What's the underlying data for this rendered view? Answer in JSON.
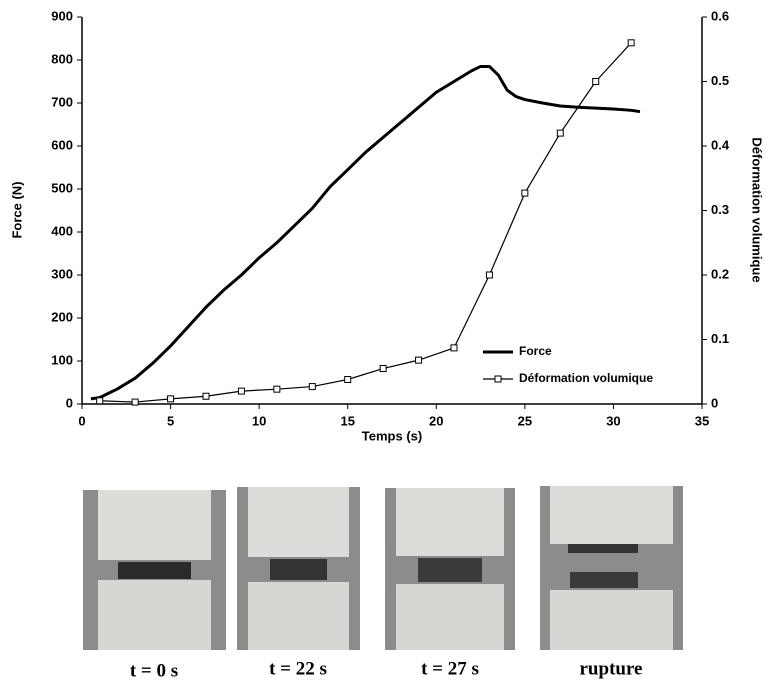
{
  "chart_data": {
    "type": "line",
    "xlabel": "Temps (s)",
    "ylabel": "Force (N)",
    "y2label": "Déformation volumique",
    "xlim": [
      0,
      35
    ],
    "xticks": [
      0,
      5,
      10,
      15,
      20,
      25,
      30,
      35
    ],
    "ylim": [
      0,
      900
    ],
    "yticks": [
      0,
      100,
      200,
      300,
      400,
      500,
      600,
      700,
      800,
      900
    ],
    "y2lim": [
      0,
      0.6
    ],
    "y2ticks": [
      0,
      0.1,
      0.2,
      0.3,
      0.4,
      0.5,
      0.6
    ],
    "legend": "lower right",
    "series": [
      {
        "name": "Force",
        "color": "#000000",
        "x": [
          0.5,
          1,
          1.5,
          2,
          3,
          4,
          5,
          6,
          7,
          8,
          9,
          10,
          11,
          12,
          13,
          14,
          15,
          16,
          17,
          18,
          19,
          20,
          21,
          22,
          22.5,
          23,
          23.5,
          24,
          24.5,
          25,
          26,
          27,
          28,
          29,
          30,
          31,
          31.5
        ],
        "values": [
          12,
          15,
          25,
          35,
          60,
          95,
          135,
          180,
          225,
          265,
          300,
          340,
          375,
          415,
          455,
          505,
          545,
          585,
          620,
          655,
          690,
          725,
          750,
          775,
          785,
          785,
          765,
          730,
          715,
          708,
          700,
          693,
          690,
          688,
          686,
          683,
          680
        ]
      },
      {
        "name": "Déformation volumique",
        "color": "#000000",
        "axis": "y2",
        "marker": "square",
        "x": [
          1,
          3,
          5,
          7,
          9,
          11,
          13,
          15,
          17,
          19,
          21,
          23,
          25,
          27,
          29,
          31
        ],
        "values": [
          0.005,
          0.003,
          0.008,
          0.012,
          0.02,
          0.023,
          0.027,
          0.038,
          0.055,
          0.068,
          0.087,
          0.2,
          0.327,
          0.42,
          0.5,
          0.56
        ]
      }
    ]
  },
  "photos": [
    {
      "caption": "t = 0 s"
    },
    {
      "caption": "t = 22 s"
    },
    {
      "caption": "t = 27 s"
    },
    {
      "caption": "rupture"
    }
  ]
}
